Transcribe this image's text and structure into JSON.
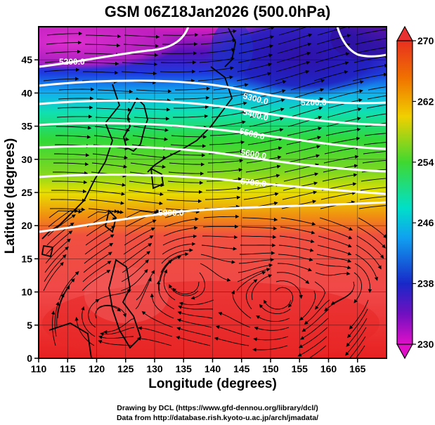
{
  "title": "GSM 06Z18Jan2026 (500.0hPa)",
  "x_axis": {
    "label": "Longitude (degrees)",
    "range": [
      110,
      170
    ],
    "ticks": [
      "110",
      "115",
      "120",
      "125",
      "130",
      "135",
      "140",
      "145",
      "150",
      "155",
      "160",
      "165"
    ]
  },
  "y_axis": {
    "label": "Latitude  (degrees)",
    "range": [
      0,
      50
    ],
    "ticks": [
      "0",
      "5",
      "10",
      "15",
      "20",
      "25",
      "30",
      "35",
      "40",
      "45"
    ]
  },
  "colorbar": {
    "labels": [
      "270",
      "262",
      "254",
      "246",
      "238",
      "230"
    ],
    "min": 230,
    "max": 270,
    "colors": {
      "low": "#e000c8",
      "mid_low": "#1818c8",
      "mid": "#00d8e8",
      "mid_high": "#30d838",
      "high_mid": "#f0c000",
      "high": "#e83030"
    }
  },
  "contours": {
    "labels": [
      "5200.0",
      "5300.0",
      "5400.0",
      "5500.0",
      "5600.0",
      "5700.0",
      "5800.0",
      "5200.0"
    ],
    "line_color": "#ffffff"
  },
  "credits": {
    "line1": "Drawing by DCL (https://www.gfd-dennou.org/library/dcl/)",
    "line2": "Data from http://database.rish.kyoto-u.ac.jp/arch/jmadata/"
  }
}
